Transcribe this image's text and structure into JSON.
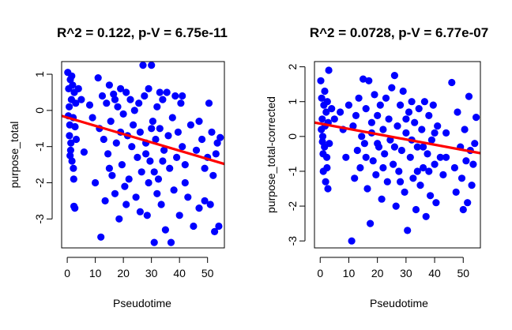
{
  "colors": {
    "points": "#0000ff",
    "fit_line": "#ff0000",
    "axes": "#000000",
    "background": "#ffffff"
  },
  "chart_data": [
    {
      "type": "scatter",
      "title": "R^2 = 0.122, p-V = 6.75e-11",
      "xlabel": "Pseudotime",
      "ylabel": "purpose_total",
      "xlim": [
        -2,
        56
      ],
      "ylim": [
        -3.8,
        1.35
      ],
      "xticks": [
        0,
        10,
        20,
        30,
        40,
        50
      ],
      "yticks": [
        -3,
        -2,
        -1,
        0,
        1
      ],
      "regression_line": {
        "x": [
          -2,
          56
        ],
        "y": [
          -0.15,
          -1.48
        ]
      },
      "grid": false,
      "points": [
        {
          "x": 0.2,
          "y": 1.05
        },
        {
          "x": 0.5,
          "y": 0.6
        },
        {
          "x": 0.7,
          "y": 0.1
        },
        {
          "x": 0.9,
          "y": -0.4
        },
        {
          "x": 1.1,
          "y": 0.85
        },
        {
          "x": 1.3,
          "y": -0.9
        },
        {
          "x": 1.5,
          "y": 0.3
        },
        {
          "x": 1.7,
          "y": -1.4
        },
        {
          "x": 1.9,
          "y": 0.7
        },
        {
          "x": 2.1,
          "y": -0.2
        },
        {
          "x": 2.3,
          "y": -1.9
        },
        {
          "x": 2.5,
          "y": 0.5
        },
        {
          "x": 2.7,
          "y": -2.7
        },
        {
          "x": 0.8,
          "y": -0.7
        },
        {
          "x": 1.2,
          "y": -1.1
        },
        {
          "x": 2.2,
          "y": -1.6
        },
        {
          "x": 1.6,
          "y": 0.95
        },
        {
          "x": 2.8,
          "y": -0.45
        },
        {
          "x": 0.4,
          "y": -0.15
        },
        {
          "x": 2.4,
          "y": -2.65
        },
        {
          "x": 3.0,
          "y": 0.2
        },
        {
          "x": 1.0,
          "y": -1.25
        },
        {
          "x": 3.2,
          "y": -0.8
        },
        {
          "x": 4,
          "y": 0.6
        },
        {
          "x": 5,
          "y": 0.3
        },
        {
          "x": 6,
          "y": -1.15
        },
        {
          "x": 8,
          "y": 0.15
        },
        {
          "x": 9,
          "y": -0.2
        },
        {
          "x": 10,
          "y": -2.0
        },
        {
          "x": 11,
          "y": 0.9
        },
        {
          "x": 11.5,
          "y": -0.5
        },
        {
          "x": 12,
          "y": -3.5
        },
        {
          "x": 12.5,
          "y": 0.4
        },
        {
          "x": 13,
          "y": -0.8
        },
        {
          "x": 13.5,
          "y": -2.5
        },
        {
          "x": 14,
          "y": 0.2
        },
        {
          "x": 14.5,
          "y": -1.2
        },
        {
          "x": 15,
          "y": 0.7
        },
        {
          "x": 15.5,
          "y": -0.3
        },
        {
          "x": 16,
          "y": -1.8
        },
        {
          "x": 16.5,
          "y": 0.45
        },
        {
          "x": 17,
          "y": -2.3
        },
        {
          "x": 17.5,
          "y": -0.9
        },
        {
          "x": 18,
          "y": 0.1
        },
        {
          "x": 18.5,
          "y": -3.0
        },
        {
          "x": 19,
          "y": 0.6
        },
        {
          "x": 19.5,
          "y": -1.5
        },
        {
          "x": 20,
          "y": -0.1
        },
        {
          "x": 20.5,
          "y": -2.1
        },
        {
          "x": 21,
          "y": 0.5
        },
        {
          "x": 21.5,
          "y": -0.7
        },
        {
          "x": 22,
          "y": -1.9
        },
        {
          "x": 22.5,
          "y": 0.3
        },
        {
          "x": 23,
          "y": -1.0
        },
        {
          "x": 23.5,
          "y": -0.4
        },
        {
          "x": 24,
          "y": 0.0
        },
        {
          "x": 24.5,
          "y": -2.4
        },
        {
          "x": 25,
          "y": -1.3
        },
        {
          "x": 25.5,
          "y": 0.2
        },
        {
          "x": 26,
          "y": -0.6
        },
        {
          "x": 26.5,
          "y": -1.7
        },
        {
          "x": 27,
          "y": 1.25
        },
        {
          "x": 27.5,
          "y": 0.4
        },
        {
          "x": 28,
          "y": -0.9
        },
        {
          "x": 28.5,
          "y": -2.9
        },
        {
          "x": 29,
          "y": 0.6
        },
        {
          "x": 29.5,
          "y": -1.4
        },
        {
          "x": 30,
          "y": 1.25
        },
        {
          "x": 30.5,
          "y": -0.3
        },
        {
          "x": 31,
          "y": -3.65
        },
        {
          "x": 31.5,
          "y": -0.8
        },
        {
          "x": 32,
          "y": 0.1
        },
        {
          "x": 32.5,
          "y": -1.9
        },
        {
          "x": 33,
          "y": -0.5
        },
        {
          "x": 33.5,
          "y": -2.6
        },
        {
          "x": 34,
          "y": 0.3
        },
        {
          "x": 34.5,
          "y": -1.1
        },
        {
          "x": 35,
          "y": -3.3
        },
        {
          "x": 35.5,
          "y": 0.5
        },
        {
          "x": 36,
          "y": -0.7
        },
        {
          "x": 36.5,
          "y": -1.6
        },
        {
          "x": 37,
          "y": -3.65
        },
        {
          "x": 37.5,
          "y": -0.2
        },
        {
          "x": 38,
          "y": -2.2
        },
        {
          "x": 38.5,
          "y": 0.4
        },
        {
          "x": 39,
          "y": -1.3
        },
        {
          "x": 39.5,
          "y": -0.6
        },
        {
          "x": 40,
          "y": -2.9
        },
        {
          "x": 40.5,
          "y": 0.2
        },
        {
          "x": 41,
          "y": -1.0
        },
        {
          "x": 42,
          "y": -1.5
        },
        {
          "x": 43,
          "y": -2.4
        },
        {
          "x": 44,
          "y": -0.4
        },
        {
          "x": 45,
          "y": -3.2
        },
        {
          "x": 46,
          "y": -1.1
        },
        {
          "x": 47,
          "y": -2.7
        },
        {
          "x": 48,
          "y": -0.8
        },
        {
          "x": 49,
          "y": -2.5
        },
        {
          "x": 50,
          "y": -1.3
        },
        {
          "x": 50.5,
          "y": 0.2
        },
        {
          "x": 51,
          "y": -2.6
        },
        {
          "x": 51.5,
          "y": -0.6
        },
        {
          "x": 52,
          "y": -1.8
        },
        {
          "x": 52.5,
          "y": -3.35
        },
        {
          "x": 53,
          "y": -1.2
        },
        {
          "x": 53.5,
          "y": -0.9
        },
        {
          "x": 54,
          "y": -3.2
        },
        {
          "x": 54.5,
          "y": -0.75
        },
        {
          "x": 28,
          "y": -1.2
        },
        {
          "x": 29,
          "y": -2.0
        },
        {
          "x": 30,
          "y": -0.5
        },
        {
          "x": 31,
          "y": -1.7
        },
        {
          "x": 32,
          "y": -2.3
        },
        {
          "x": 33,
          "y": 0.5
        },
        {
          "x": 26,
          "y": -2.8
        },
        {
          "x": 34,
          "y": -1.4
        },
        {
          "x": 21,
          "y": -2.6
        },
        {
          "x": 19,
          "y": -0.6
        },
        {
          "x": 17,
          "y": 0.3
        },
        {
          "x": 15,
          "y": -1.6
        },
        {
          "x": 41,
          "y": 0.4
        },
        {
          "x": 42,
          "y": -2.0
        },
        {
          "x": 47,
          "y": -0.3
        },
        {
          "x": 49,
          "y": -1.6
        }
      ]
    },
    {
      "type": "scatter",
      "title": "R^2 = 0.0728, p-V = 6.77e-07",
      "xlabel": "Pseudotime",
      "ylabel": "purpose_total-corrected",
      "xlim": [
        -2,
        56
      ],
      "ylim": [
        -3.2,
        2.15
      ],
      "xticks": [
        0,
        10,
        20,
        30,
        40,
        50
      ],
      "yticks": [
        -3,
        -2,
        -1,
        0,
        1,
        2
      ],
      "regression_line": {
        "x": [
          -2,
          56
        ],
        "y": [
          0.4,
          -0.48
        ]
      },
      "grid": false,
      "points": [
        {
          "x": 0.2,
          "y": 1.6
        },
        {
          "x": 0.5,
          "y": 1.1
        },
        {
          "x": 0.7,
          "y": 0.5
        },
        {
          "x": 0.9,
          "y": 0.0
        },
        {
          "x": 1.1,
          "y": -1.0
        },
        {
          "x": 1.3,
          "y": 0.9
        },
        {
          "x": 1.5,
          "y": -0.3
        },
        {
          "x": 1.7,
          "y": 0.3
        },
        {
          "x": 1.9,
          "y": -1.3
        },
        {
          "x": 2.1,
          "y": 0.7
        },
        {
          "x": 2.3,
          "y": -0.6
        },
        {
          "x": 2.5,
          "y": 1.0
        },
        {
          "x": 2.7,
          "y": -1.5
        },
        {
          "x": 0.4,
          "y": 0.2
        },
        {
          "x": 1.0,
          "y": -0.5
        },
        {
          "x": 1.6,
          "y": 1.3
        },
        {
          "x": 2.4,
          "y": -0.9
        },
        {
          "x": 2.8,
          "y": 0.4
        },
        {
          "x": 0.8,
          "y": -0.15
        },
        {
          "x": 3.0,
          "y": 1.9
        },
        {
          "x": 3.2,
          "y": -0.2
        },
        {
          "x": 4,
          "y": 0.8
        },
        {
          "x": 5,
          "y": 0.5
        },
        {
          "x": 7,
          "y": 0.7
        },
        {
          "x": 8,
          "y": 0.2
        },
        {
          "x": 9,
          "y": -0.6
        },
        {
          "x": 10,
          "y": 0.9
        },
        {
          "x": 11,
          "y": -3.0
        },
        {
          "x": 11.5,
          "y": 0.3
        },
        {
          "x": 12,
          "y": -1.2
        },
        {
          "x": 12.5,
          "y": 0.6
        },
        {
          "x": 13,
          "y": -0.4
        },
        {
          "x": 13.5,
          "y": 1.1
        },
        {
          "x": 14,
          "y": -0.9
        },
        {
          "x": 14.5,
          "y": 0.0
        },
        {
          "x": 15,
          "y": 1.65
        },
        {
          "x": 15.5,
          "y": -0.2
        },
        {
          "x": 16,
          "y": 0.8
        },
        {
          "x": 16.5,
          "y": -1.5
        },
        {
          "x": 17,
          "y": 1.6
        },
        {
          "x": 17.5,
          "y": -2.5
        },
        {
          "x": 18,
          "y": 0.4
        },
        {
          "x": 18.5,
          "y": -0.7
        },
        {
          "x": 19,
          "y": 1.2
        },
        {
          "x": 19.5,
          "y": -1.1
        },
        {
          "x": 20,
          "y": 0.6
        },
        {
          "x": 20.5,
          "y": -0.3
        },
        {
          "x": 21,
          "y": 0.9
        },
        {
          "x": 21.5,
          "y": -1.8
        },
        {
          "x": 22,
          "y": 0.2
        },
        {
          "x": 22.5,
          "y": -0.5
        },
        {
          "x": 23,
          "y": 1.1
        },
        {
          "x": 23.5,
          "y": -1.3
        },
        {
          "x": 24,
          "y": 0.5
        },
        {
          "x": 24.5,
          "y": -0.1
        },
        {
          "x": 25,
          "y": 1.4
        },
        {
          "x": 25.5,
          "y": -0.8
        },
        {
          "x": 26,
          "y": 1.75
        },
        {
          "x": 26.5,
          "y": -2.0
        },
        {
          "x": 27,
          "y": 0.3
        },
        {
          "x": 27.5,
          "y": -1.0
        },
        {
          "x": 28,
          "y": 0.9
        },
        {
          "x": 28.5,
          "y": -0.4
        },
        {
          "x": 29,
          "y": 1.3
        },
        {
          "x": 29.5,
          "y": -1.6
        },
        {
          "x": 30,
          "y": 0.1
        },
        {
          "x": 30.5,
          "y": -2.7
        },
        {
          "x": 31,
          "y": 0.7
        },
        {
          "x": 31.5,
          "y": -0.6
        },
        {
          "x": 32,
          "y": 1.0
        },
        {
          "x": 32.5,
          "y": -1.2
        },
        {
          "x": 33,
          "y": 0.4
        },
        {
          "x": 33.5,
          "y": -2.1
        },
        {
          "x": 34,
          "y": -0.3
        },
        {
          "x": 34.5,
          "y": 0.8
        },
        {
          "x": 35,
          "y": -1.4
        },
        {
          "x": 35.5,
          "y": 0.2
        },
        {
          "x": 36,
          "y": -0.9
        },
        {
          "x": 36.5,
          "y": 1.0
        },
        {
          "x": 37,
          "y": -2.3
        },
        {
          "x": 37.5,
          "y": -0.5
        },
        {
          "x": 38,
          "y": 0.6
        },
        {
          "x": 38.5,
          "y": -1.7
        },
        {
          "x": 39,
          "y": -0.1
        },
        {
          "x": 39.5,
          "y": 0.9
        },
        {
          "x": 40,
          "y": -0.8
        },
        {
          "x": 40.5,
          "y": -1.9
        },
        {
          "x": 41,
          "y": 0.3
        },
        {
          "x": 42,
          "y": -0.6
        },
        {
          "x": 43,
          "y": -1.1
        },
        {
          "x": 44,
          "y": 0.1
        },
        {
          "x": 46,
          "y": 1.55
        },
        {
          "x": 47,
          "y": -0.9
        },
        {
          "x": 47.5,
          "y": -1.6
        },
        {
          "x": 48,
          "y": 0.7
        },
        {
          "x": 49,
          "y": -0.3
        },
        {
          "x": 49.5,
          "y": -1.2
        },
        {
          "x": 50,
          "y": -2.1
        },
        {
          "x": 50.5,
          "y": 0.2
        },
        {
          "x": 51,
          "y": -0.7
        },
        {
          "x": 51.5,
          "y": -1.9
        },
        {
          "x": 52,
          "y": 1.15
        },
        {
          "x": 52.5,
          "y": -0.4
        },
        {
          "x": 53,
          "y": -1.4
        },
        {
          "x": 53.5,
          "y": -0.8
        },
        {
          "x": 54,
          "y": -0.2
        },
        {
          "x": 54.5,
          "y": 0.55
        },
        {
          "x": 28,
          "y": -1.3
        },
        {
          "x": 30,
          "y": 0.5
        },
        {
          "x": 32,
          "y": -0.1
        },
        {
          "x": 34,
          "y": -1.0
        },
        {
          "x": 22,
          "y": -0.9
        },
        {
          "x": 20,
          "y": -0.2
        },
        {
          "x": 18,
          "y": 0.1
        },
        {
          "x": 16,
          "y": -0.6
        },
        {
          "x": 36,
          "y": -0.3
        },
        {
          "x": 38,
          "y": -1.0
        },
        {
          "x": 40,
          "y": 0.1
        },
        {
          "x": 44,
          "y": -0.6
        },
        {
          "x": 26,
          "y": -0.3
        }
      ]
    }
  ]
}
